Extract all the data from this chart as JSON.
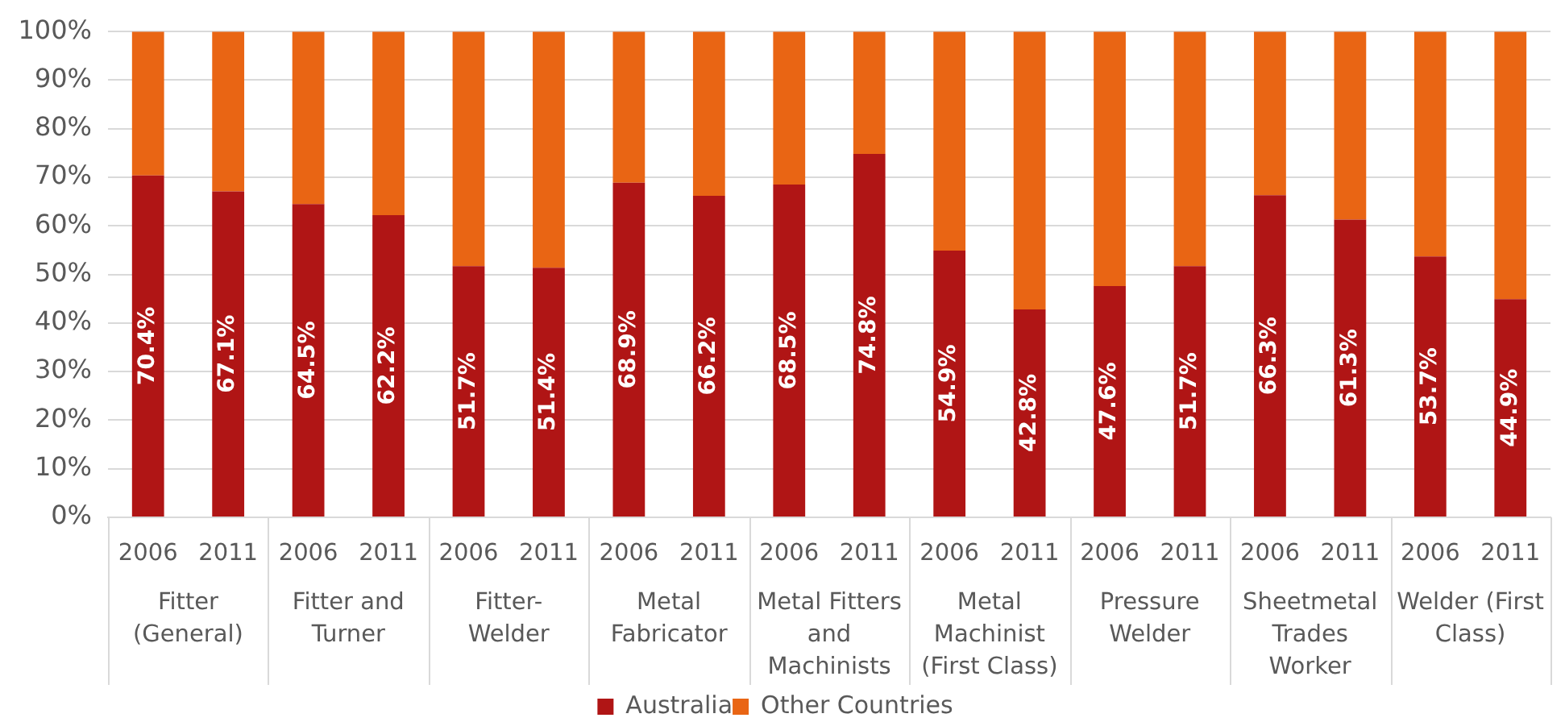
{
  "chart_data": {
    "type": "bar",
    "stacked": true,
    "categories": [
      "2006",
      "2011",
      "2006",
      "2011",
      "2006",
      "2011",
      "2006",
      "2011",
      "2006",
      "2011",
      "2006",
      "2011",
      "2006",
      "2011",
      "2006",
      "2011",
      "2006",
      "2011"
    ],
    "series": [
      {
        "name": "Australia",
        "color": "#b01515",
        "values": [
          70.4,
          67.1,
          64.5,
          62.2,
          51.7,
          51.4,
          68.9,
          66.2,
          68.5,
          74.8,
          54.9,
          42.8,
          47.6,
          51.7,
          66.3,
          61.3,
          53.7,
          44.9
        ],
        "value_labels": [
          "70.4%",
          "67.1%",
          "64.5%",
          "62.2%",
          "51.7%",
          "51.4%",
          "68.9%",
          "66.2%",
          "68.5%",
          "74.8%",
          "54.9%",
          "42.8%",
          "47.6%",
          "51.7%",
          "66.3%",
          "61.3%",
          "53.7%",
          "44.9%"
        ]
      },
      {
        "name": "Other Countries",
        "color": "#e96514",
        "values": [
          29.6,
          32.9,
          35.5,
          37.8,
          48.3,
          48.6,
          31.1,
          33.8,
          31.5,
          25.2,
          45.1,
          57.2,
          52.4,
          48.3,
          33.7,
          38.7,
          46.3,
          55.1
        ]
      }
    ],
    "ylim": [
      0,
      100
    ],
    "yticks": [
      {
        "value": 0,
        "label": "0%"
      },
      {
        "value": 10,
        "label": "10%"
      },
      {
        "value": 20,
        "label": "20%"
      },
      {
        "value": 30,
        "label": "30%"
      },
      {
        "value": 40,
        "label": "40%"
      },
      {
        "value": 50,
        "label": "50%"
      },
      {
        "value": 60,
        "label": "60%"
      },
      {
        "value": 70,
        "label": "70%"
      },
      {
        "value": 80,
        "label": "80%"
      },
      {
        "value": 90,
        "label": "90%"
      },
      {
        "value": 100,
        "label": "100%"
      }
    ],
    "grid": "y",
    "legend": "bottom",
    "annotations": [
      "Fitter (General)",
      "Fitter and Turner",
      "Fitter-Welder",
      "Metal Fabricator",
      "Metal Fitters and Machinists",
      "Metal Machinist (First Class)",
      "Pressure Welder",
      "Sheetmetal Trades Worker",
      "Welder (First Class)"
    ]
  }
}
